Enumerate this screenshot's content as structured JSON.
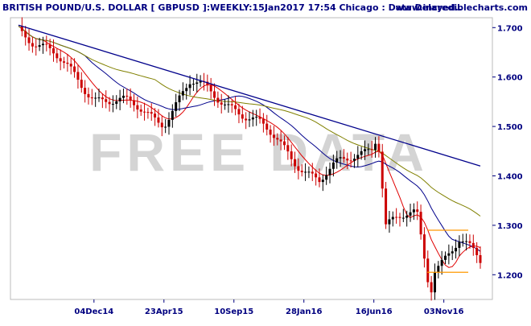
{
  "header": {
    "title": "BRITISH POUND/U.S. DOLLAR [ GBPUSD ]:WEEKLY:15Jan2017 17:54 Chicago : Data Delayed..",
    "site": "www.incrediblecharts.com"
  },
  "watermark": "FREE DATA",
  "colors": {
    "title": "#000080",
    "up_candle": "#000000",
    "down_candle": "#cc0000",
    "fast_ma": "#e00000",
    "mid_ma": "#00008b",
    "slow_ma": "#808000",
    "trendline": "#00008b",
    "level_line": "#ff9900",
    "axis": "#000080"
  },
  "chart_data": {
    "type": "candlestick",
    "y_axis": {
      "range": [
        1.15,
        1.72
      ],
      "ticks": [
        {
          "value": 1.7,
          "label": "1.700"
        },
        {
          "value": 1.6,
          "label": "1.600"
        },
        {
          "value": 1.5,
          "label": "1.500"
        },
        {
          "value": 1.4,
          "label": "1.400"
        },
        {
          "value": 1.3,
          "label": "1.300"
        },
        {
          "value": 1.2,
          "label": "1.200"
        }
      ]
    },
    "x_axis": {
      "range": [
        "2014-07-06",
        "2017-01-15"
      ],
      "ticks": [
        {
          "date": "2014-12-04",
          "label": "04Dec14"
        },
        {
          "date": "2015-04-23",
          "label": "23Apr15"
        },
        {
          "date": "2015-09-10",
          "label": "10Sep15"
        },
        {
          "date": "2016-01-28",
          "label": "28Jan16"
        },
        {
          "date": "2016-06-16",
          "label": "16Jun16"
        },
        {
          "date": "2016-11-03",
          "label": "03Nov16"
        }
      ]
    },
    "trendline": {
      "start": [
        "2014-07-06",
        1.705
      ],
      "end": [
        "2017-01-15",
        1.42
      ]
    },
    "horizontal_lines": [
      1.29,
      1.205
    ],
    "key_points": [
      {
        "date": "2014-07-06",
        "value": 1.705
      },
      {
        "date": "2014-12-04",
        "value": 1.565
      },
      {
        "date": "2015-04-23",
        "value": 1.515
      },
      {
        "date": "2015-06-15",
        "value": 1.585
      },
      {
        "date": "2015-09-10",
        "value": 1.545
      },
      {
        "date": "2016-01-28",
        "value": 1.42
      },
      {
        "date": "2016-02-28",
        "value": 1.39
      },
      {
        "date": "2016-06-16",
        "value": 1.47
      },
      {
        "date": "2016-06-23",
        "value": 1.5
      },
      {
        "date": "2016-07-10",
        "value": 1.3
      },
      {
        "date": "2016-09-10",
        "value": 1.32
      },
      {
        "date": "2016-10-07",
        "value": 1.17
      },
      {
        "date": "2016-10-16",
        "value": 1.22
      },
      {
        "date": "2016-12-04",
        "value": 1.27
      },
      {
        "date": "2017-01-15",
        "value": 1.22
      }
    ],
    "moving_averages": [
      {
        "color_key": "fast_ma",
        "period": 8
      },
      {
        "color_key": "mid_ma",
        "period": 20
      },
      {
        "color_key": "slow_ma",
        "period": 40
      }
    ]
  }
}
